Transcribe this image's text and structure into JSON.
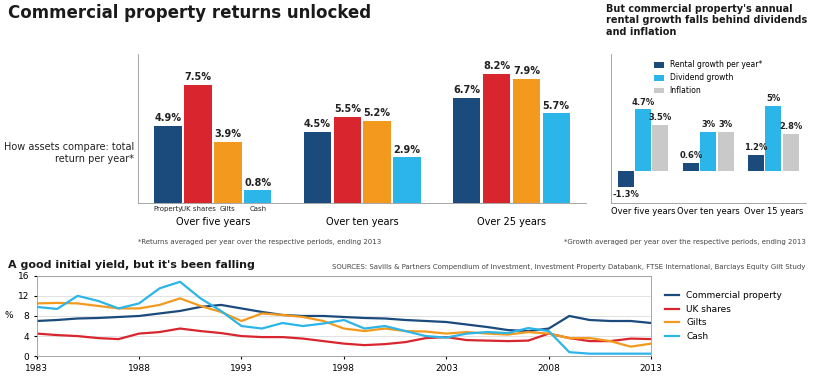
{
  "title": "Commercial property returns unlocked",
  "chart_data": [
    {
      "type": "bar",
      "title": "How assets compare: total return per year*",
      "note": "*Returns averaged per year over the respective periods, ending 2013",
      "categories": [
        "Over five years",
        "Over ten years",
        "Over 25 years"
      ],
      "series": [
        {
          "name": "Property",
          "color": "#1b4a7c",
          "values": [
            4.9,
            4.5,
            6.7
          ],
          "value_labels": [
            "4.9%",
            "4.5%",
            "6.7%"
          ]
        },
        {
          "name": "UK shares",
          "color": "#d9262e",
          "values": [
            7.5,
            5.5,
            8.2
          ],
          "value_labels": [
            "7.5%",
            "5.5%",
            "8.2%"
          ]
        },
        {
          "name": "Gilts",
          "color": "#f39a1e",
          "values": [
            3.9,
            5.2,
            7.9
          ],
          "value_labels": [
            "3.9%",
            "5.2%",
            "7.9%"
          ]
        },
        {
          "name": "Cash",
          "color": "#2bb5e8",
          "values": [
            0.8,
            2.9,
            5.7
          ],
          "value_labels": [
            "0.8%",
            "2.9%",
            "5.7%"
          ]
        }
      ],
      "ylim": [
        0,
        9.5
      ],
      "yticks": [],
      "tick_labels": "x",
      "data_labels": true
    },
    {
      "type": "bar",
      "title": "But commercial property's annual rental growth falls behind dividends and inflation",
      "note": "*Growth averaged per year over the respective periods, ending 2013",
      "categories": [
        "Over five years",
        "Over ten years",
        "Over 15 years"
      ],
      "series": [
        {
          "name": "Rental growth per year*",
          "color": "#1b4a7c",
          "values": [
            -1.3,
            0.6,
            1.2
          ],
          "value_labels": [
            "-1.3%",
            "0.6%",
            "1.2%"
          ]
        },
        {
          "name": "Dividend growth",
          "color": "#2bb5e8",
          "values": [
            4.7,
            3,
            5
          ],
          "value_labels": [
            "4.7%",
            "3%",
            "5%"
          ]
        },
        {
          "name": "Inflation",
          "color": "#c9c9c9",
          "values": [
            3.5,
            3,
            2.8
          ],
          "value_labels": [
            "3.5%",
            "3%",
            "2.8%"
          ]
        }
      ],
      "ylim": [
        -2.5,
        9
      ],
      "yticks": [],
      "tick_labels": "x",
      "data_labels": true,
      "legend": "upper center"
    },
    {
      "type": "line",
      "title": "A good initial yield, but it's been falling",
      "sources": "SOURCES: Savills & Partners Compendium of Investment, Investment Property Databank, FTSE International, Barclays Equity Gilt Study",
      "y_label": "%",
      "x": [
        1983,
        1984,
        1985,
        1986,
        1987,
        1988,
        1989,
        1990,
        1991,
        1992,
        1993,
        1994,
        1995,
        1996,
        1997,
        1998,
        1999,
        2000,
        2001,
        2002,
        2003,
        2004,
        2005,
        2006,
        2007,
        2008,
        2009,
        2010,
        2011,
        2012,
        2013
      ],
      "series": [
        {
          "name": "Commercial property",
          "color": "#1b4a7c",
          "values": [
            7.0,
            7.2,
            7.5,
            7.6,
            7.8,
            8.0,
            8.5,
            9.0,
            9.8,
            10.2,
            9.5,
            8.8,
            8.2,
            8.0,
            8.0,
            7.8,
            7.6,
            7.5,
            7.2,
            7.0,
            6.8,
            6.3,
            5.8,
            5.2,
            5.0,
            5.5,
            8.0,
            7.2,
            7.0,
            7.0,
            6.6
          ]
        },
        {
          "name": "UK shares",
          "color": "#d9262e",
          "values": [
            4.5,
            4.2,
            4.0,
            3.6,
            3.4,
            4.5,
            4.8,
            5.5,
            5.0,
            4.6,
            4.0,
            3.8,
            3.8,
            3.5,
            3.0,
            2.5,
            2.2,
            2.4,
            2.8,
            3.6,
            3.8,
            3.2,
            3.1,
            3.0,
            3.1,
            4.5,
            3.6,
            3.0,
            3.0,
            3.5,
            3.4
          ]
        },
        {
          "name": "Gilts",
          "color": "#f39a1e",
          "values": [
            10.5,
            10.6,
            10.5,
            10.0,
            9.5,
            9.5,
            10.2,
            11.5,
            10.0,
            8.8,
            7.0,
            8.5,
            8.2,
            7.8,
            7.0,
            5.5,
            5.0,
            5.5,
            5.0,
            4.9,
            4.5,
            4.8,
            4.5,
            4.3,
            4.8,
            4.5,
            3.6,
            3.6,
            3.0,
            1.9,
            2.5
          ]
        },
        {
          "name": "Cash",
          "color": "#2bb5e8",
          "values": [
            9.8,
            9.4,
            12.0,
            11.0,
            9.5,
            10.5,
            13.5,
            14.8,
            11.5,
            9.0,
            6.0,
            5.5,
            6.6,
            6.0,
            6.5,
            7.2,
            5.5,
            6.0,
            5.0,
            4.0,
            3.7,
            4.5,
            4.8,
            4.6,
            5.6,
            5.0,
            0.8,
            0.5,
            0.5,
            0.5,
            0.5
          ]
        }
      ],
      "xlim": [
        1983,
        2013
      ],
      "xticks": [
        1983,
        1988,
        1993,
        1998,
        2003,
        2008,
        2013
      ],
      "ylim": [
        0,
        16
      ],
      "yticks": [
        0,
        4,
        8,
        12,
        16
      ],
      "grid": true,
      "legend": "center left"
    }
  ]
}
